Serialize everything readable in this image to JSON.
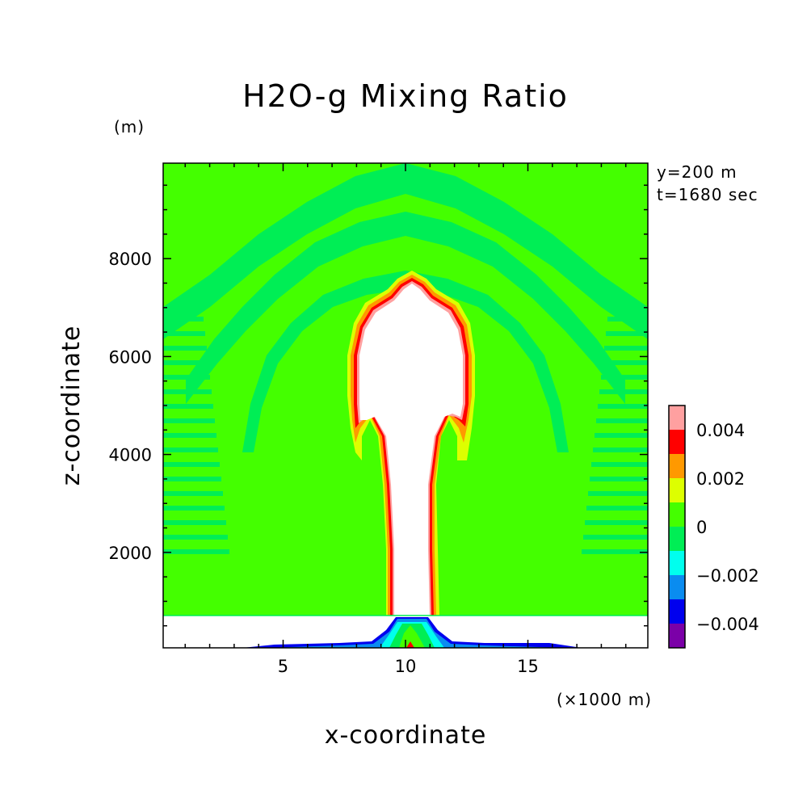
{
  "chart_data": {
    "type": "heatmap",
    "title": "H2O-g Mixing Ratio",
    "xlabel": "x-coordinate",
    "ylabel": "z-coordinate",
    "x_unit": "(×1000 m)",
    "y_unit": "(m)",
    "annotations": [
      "y=200 m",
      "t=1680 sec"
    ],
    "xlim": [
      0.1,
      19.9
    ],
    "ylim": [
      50,
      9950
    ],
    "x_ticks": [
      5,
      10,
      15
    ],
    "y_ticks": [
      2000,
      4000,
      6000,
      8000
    ],
    "x_tick_labels": [
      "5",
      "10",
      "15"
    ],
    "y_tick_labels": [
      "2000",
      "4000",
      "6000",
      "8000"
    ],
    "colorbar": {
      "levels": [
        -0.005,
        -0.004,
        -0.003,
        -0.002,
        -0.001,
        0,
        0.001,
        0.002,
        0.003,
        0.004,
        0.005
      ],
      "colors": [
        "#7b00a8",
        "#0000ee",
        "#0a8cf0",
        "#00ffee",
        "#00ee55",
        "#44ff00",
        "#ddff00",
        "#ff9900",
        "#ff0000",
        "#ffa0a0"
      ],
      "tick_values": [
        0.004,
        0.002,
        0,
        -0.002,
        -0.004
      ],
      "tick_labels": [
        "0.004",
        "0.002",
        "0",
        "-0.002",
        "-0.004"
      ]
    },
    "features": {
      "background_value": 0,
      "ground_layer_top_z": 700,
      "plume_x_range": [
        9.1,
        11.1
      ],
      "plume_stem_top_z": 4800,
      "plume_head_top_z": 7600
    }
  }
}
